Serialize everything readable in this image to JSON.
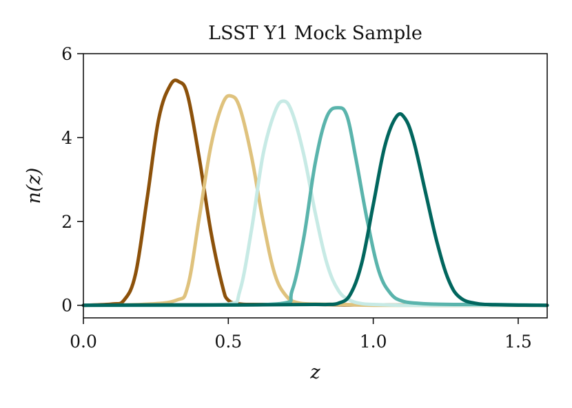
{
  "chart_data": {
    "type": "line",
    "title": "LSST Y1 Mock Sample",
    "xlabel": "z",
    "ylabel": "n(z)",
    "xlim": [
      0.0,
      1.6
    ],
    "ylim": [
      -0.3,
      6.0
    ],
    "xticks": [
      {
        "value": 0.0,
        "label": "0.0"
      },
      {
        "value": 0.5,
        "label": "0.5"
      },
      {
        "value": 1.0,
        "label": "1.0"
      },
      {
        "value": 1.5,
        "label": "1.5"
      }
    ],
    "yticks": [
      {
        "value": 0,
        "label": "0"
      },
      {
        "value": 2,
        "label": "2"
      },
      {
        "value": 4,
        "label": "4"
      },
      {
        "value": 6,
        "label": "6"
      }
    ],
    "grid": false,
    "legend": "none",
    "series": [
      {
        "color": "#8c510a",
        "x": [
          0.0,
          0.1,
          0.14,
          0.18,
          0.22,
          0.26,
          0.3,
          0.33,
          0.36,
          0.4,
          0.44,
          0.48,
          0.5,
          0.54,
          0.6,
          0.7,
          0.8,
          0.9,
          1.0,
          1.2,
          1.4,
          1.6
        ],
        "y": [
          0.0,
          0.03,
          0.12,
          0.75,
          2.55,
          4.45,
          5.25,
          5.33,
          5.0,
          3.5,
          1.75,
          0.45,
          0.12,
          0.03,
          0.02,
          0.02,
          0.02,
          0.01,
          0.01,
          0.0,
          0.0,
          0.0
        ]
      },
      {
        "color": "#dfc27d",
        "x": [
          0.0,
          0.2,
          0.32,
          0.36,
          0.4,
          0.44,
          0.48,
          0.51,
          0.54,
          0.58,
          0.62,
          0.66,
          0.7,
          0.74,
          0.8,
          0.9,
          1.0,
          1.2,
          1.4,
          1.6
        ],
        "y": [
          0.0,
          0.02,
          0.12,
          0.45,
          2.1,
          3.8,
          4.8,
          4.99,
          4.7,
          3.55,
          2.0,
          0.75,
          0.22,
          0.06,
          0.03,
          0.02,
          0.0,
          0.0,
          0.0,
          0.0
        ]
      },
      {
        "color": "#c7eae5",
        "x": [
          0.0,
          0.3,
          0.5,
          0.54,
          0.58,
          0.62,
          0.66,
          0.69,
          0.72,
          0.76,
          0.8,
          0.84,
          0.88,
          0.92,
          0.96,
          1.0,
          1.1,
          1.2,
          1.4,
          1.6
        ],
        "y": [
          0.0,
          0.0,
          0.03,
          0.35,
          1.8,
          3.6,
          4.6,
          4.87,
          4.6,
          3.6,
          2.2,
          1.0,
          0.35,
          0.12,
          0.04,
          0.02,
          0.0,
          0.0,
          0.0,
          0.0
        ]
      },
      {
        "color": "#5ab4ac",
        "x": [
          0.0,
          0.4,
          0.68,
          0.72,
          0.76,
          0.8,
          0.84,
          0.88,
          0.91,
          0.94,
          0.98,
          1.02,
          1.06,
          1.1,
          1.15,
          1.2,
          1.3,
          1.4,
          1.5,
          1.6
        ],
        "y": [
          0.0,
          0.0,
          0.04,
          0.35,
          1.6,
          3.4,
          4.5,
          4.71,
          4.5,
          3.5,
          2.0,
          0.8,
          0.28,
          0.1,
          0.05,
          0.03,
          0.02,
          0.02,
          0.01,
          0.0
        ]
      },
      {
        "color": "#01665e",
        "x": [
          0.0,
          0.3,
          0.6,
          0.8,
          0.84,
          0.88,
          0.92,
          0.96,
          1.0,
          1.04,
          1.08,
          1.11,
          1.14,
          1.18,
          1.22,
          1.26,
          1.3,
          1.36,
          1.45,
          1.6
        ],
        "y": [
          0.0,
          0.01,
          0.01,
          0.02,
          0.02,
          0.05,
          0.25,
          1.0,
          2.4,
          3.8,
          4.5,
          4.45,
          3.9,
          2.7,
          1.5,
          0.6,
          0.18,
          0.04,
          0.01,
          0.0
        ]
      }
    ]
  }
}
